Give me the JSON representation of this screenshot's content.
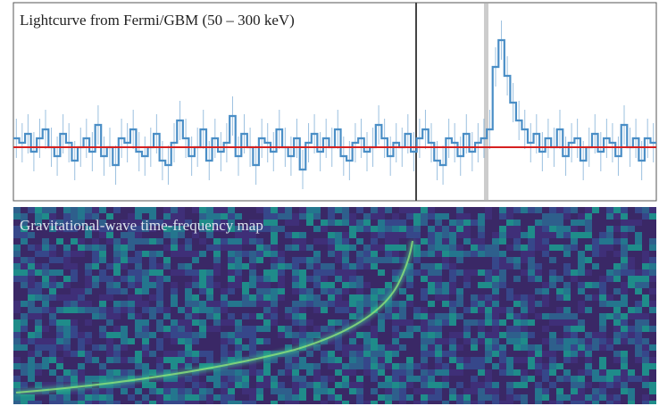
{
  "chart_data": [
    {
      "type": "step",
      "title": "Lightcurve from Fermi/GBM (50 – 300 keV)",
      "color": "#4a8ec6",
      "values": [
        1,
        0.5,
        1.5,
        -0.5,
        1,
        2,
        0,
        -1,
        1.5,
        0.5,
        -1.5,
        0,
        1,
        -0.5,
        2.5,
        -1,
        0,
        -2,
        1,
        0.5,
        2,
        -0.5,
        -1,
        0,
        1.5,
        -1.5,
        -2,
        0.5,
        3,
        1,
        -1,
        0,
        2,
        -1.5,
        1,
        -0.5,
        0.5,
        3.5,
        -1,
        1.5,
        0,
        -2,
        1,
        0.5,
        -0.5,
        2,
        0,
        -1,
        1,
        -2.5,
        0.5,
        1.5,
        -0.5,
        1,
        0,
        2,
        -1,
        -1.5,
        0.5,
        1,
        -0.5,
        0,
        2.5,
        1,
        -1,
        0.5,
        0,
        1.5,
        -0.5,
        1,
        2,
        0.5,
        -1.5,
        -2,
        1,
        0.5,
        -1,
        1.5,
        -0.5,
        0.5,
        1,
        2,
        9,
        12,
        8,
        5,
        3,
        2,
        0.5,
        1.5,
        -0.5,
        1,
        0,
        2,
        -1,
        0.5,
        1,
        -1.5,
        0,
        1.5,
        -0.5,
        1,
        0.5,
        -1,
        2.5,
        0,
        1,
        -1.5,
        1,
        0.5
      ]
    },
    {
      "type": "heatmap",
      "title": "Gravitational-wave time-frequency map"
    }
  ]
}
